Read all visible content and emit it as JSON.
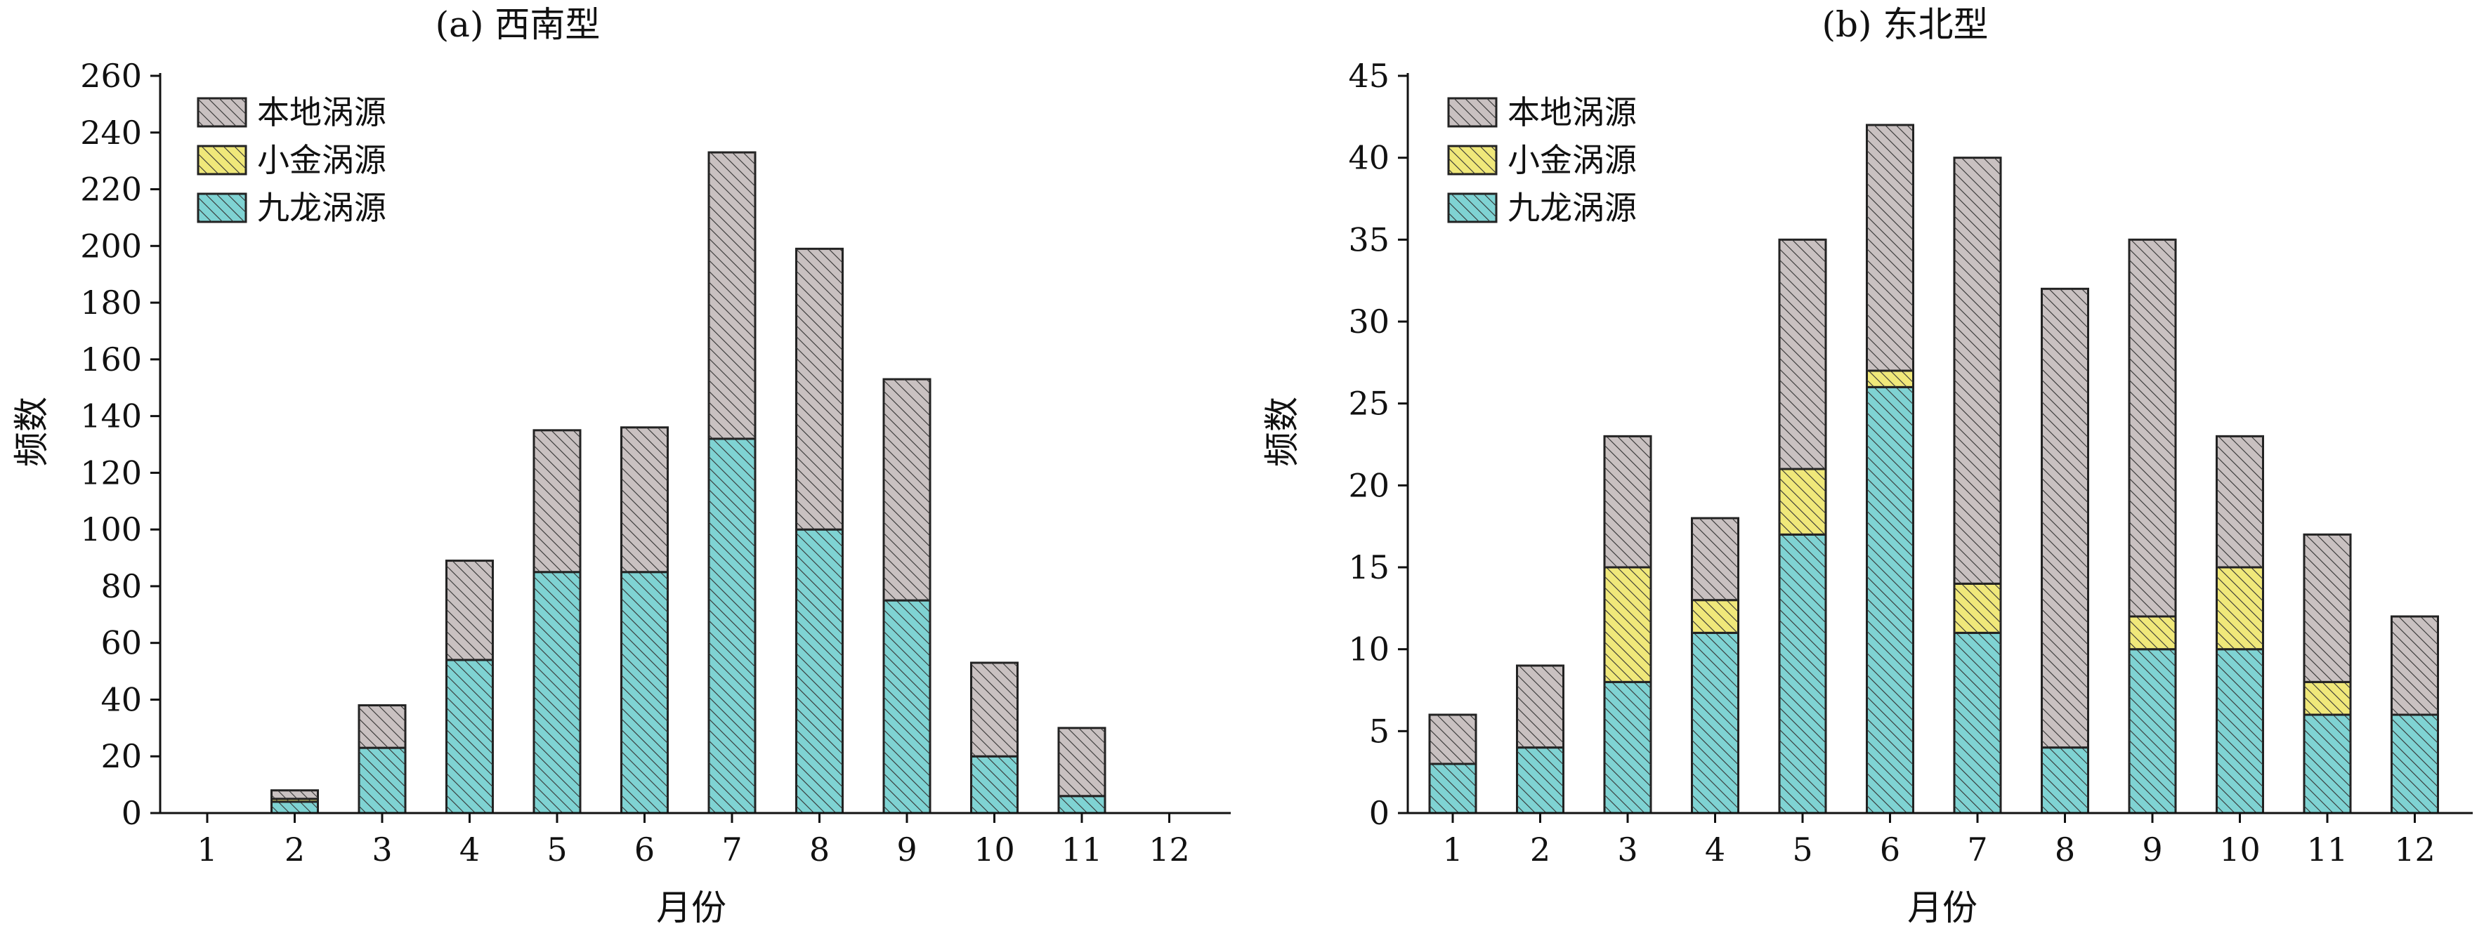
{
  "chart_data": [
    {
      "type": "bar",
      "stacked": true,
      "title": "(a) 西南型",
      "xlabel": "月份",
      "ylabel": "频数",
      "categories": [
        "1",
        "2",
        "3",
        "4",
        "5",
        "6",
        "7",
        "8",
        "9",
        "10",
        "11",
        "12"
      ],
      "ylim": [
        0,
        260
      ],
      "yticks": [
        0,
        20,
        40,
        60,
        80,
        100,
        120,
        140,
        160,
        180,
        200,
        220,
        240,
        260
      ],
      "legend_position": "top-left",
      "grid": false,
      "series": [
        {
          "name": "九龙涡源",
          "color": "#7fd3d3",
          "values": [
            0,
            4,
            23,
            54,
            85,
            85,
            132,
            100,
            75,
            20,
            6,
            0
          ]
        },
        {
          "name": "小金涡源",
          "color": "#f0e87a",
          "values": [
            0,
            1,
            0,
            0,
            0,
            0,
            0,
            0,
            0,
            0,
            0,
            0
          ]
        },
        {
          "name": "本地涡源",
          "color": "#c9c1c1",
          "values": [
            0,
            3,
            15,
            35,
            50,
            51,
            101,
            99,
            78,
            33,
            24,
            0
          ]
        }
      ],
      "legend_order": [
        "本地涡源",
        "小金涡源",
        "九龙涡源"
      ]
    },
    {
      "type": "bar",
      "stacked": true,
      "title": "(b) 东北型",
      "xlabel": "月份",
      "ylabel": "频数",
      "categories": [
        "1",
        "2",
        "3",
        "4",
        "5",
        "6",
        "7",
        "8",
        "9",
        "10",
        "11",
        "12"
      ],
      "ylim": [
        0,
        45
      ],
      "yticks": [
        0,
        5,
        10,
        15,
        20,
        25,
        30,
        35,
        40,
        45
      ],
      "legend_position": "top-left",
      "grid": false,
      "series": [
        {
          "name": "九龙涡源",
          "color": "#7fd3d3",
          "values": [
            3,
            4,
            8,
            11,
            17,
            26,
            11,
            4,
            10,
            10,
            6,
            6
          ]
        },
        {
          "name": "小金涡源",
          "color": "#f0e87a",
          "values": [
            0,
            0,
            7,
            2,
            4,
            1,
            3,
            0,
            2,
            5,
            2,
            0
          ]
        },
        {
          "name": "本地涡源",
          "color": "#c9c1c1",
          "values": [
            3,
            5,
            8,
            5,
            14,
            15,
            26,
            28,
            23,
            8,
            9,
            6
          ]
        }
      ],
      "legend_order": [
        "本地涡源",
        "小金涡源",
        "九龙涡源"
      ]
    }
  ]
}
